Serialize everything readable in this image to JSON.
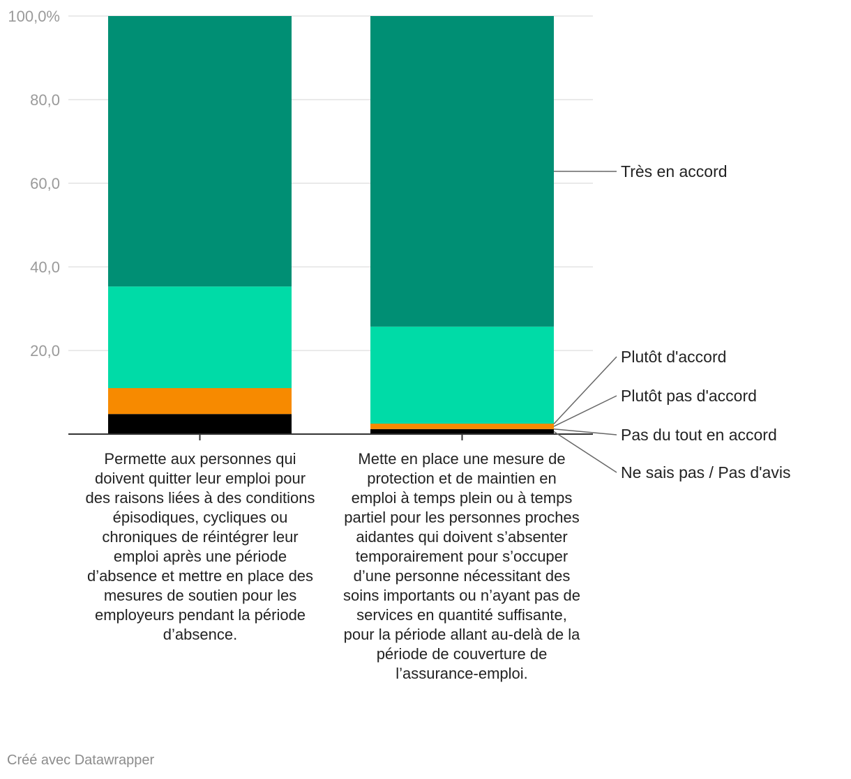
{
  "chart_data": {
    "type": "bar",
    "stacked": true,
    "ylim": [
      0,
      100
    ],
    "yticks": [
      "100,0%",
      "80,0",
      "60,0",
      "40,0",
      "20,0"
    ],
    "ytick_values": [
      100,
      80,
      60,
      40,
      20
    ],
    "grid": true,
    "legend_position": "right",
    "categories": [
      "Permette aux personnes qui doivent quitter leur emploi pour des raisons liées à des conditions épisodiques, cycliques ou chroniques de réintégrer leur emploi après une période d’absence et mettre en place des mesures de soutien pour les employeurs pendant la période d’absence.",
      "Mette en place une mesure de protection et de maintien en emploi à temps plein ou à temps partiel pour les personnes proches aidantes qui doivent s’absenter temporairement pour s’occuper d’une personne nécessitant des soins importants ou n’ayant pas de services en quantité suffisante, pour la période allant au-delà de la période de couverture de l’assurance-emploi."
    ],
    "series": [
      {
        "name": "Ne sais pas / Pas d'avis",
        "color": "#000000",
        "values": [
          4.8,
          1.2
        ]
      },
      {
        "name": "Pas du tout en accord",
        "color": "#f78a00",
        "values": [
          0,
          0
        ]
      },
      {
        "name": "Plutôt pas d'accord",
        "color": "#f78a00",
        "values": [
          6.2,
          1.3
        ]
      },
      {
        "name": "Plutôt d'accord",
        "color": "#00dba7",
        "values": [
          24.3,
          23.2
        ]
      },
      {
        "name": "Très en accord",
        "color": "#008f74",
        "values": [
          64.7,
          74.3
        ]
      }
    ]
  },
  "footer": "Créé avec Datawrapper"
}
